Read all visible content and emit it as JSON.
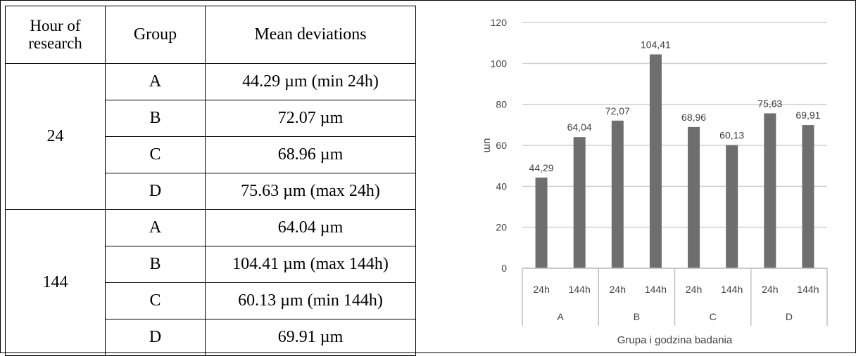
{
  "table": {
    "headers": [
      "Hour of research",
      "Group",
      "Mean deviations"
    ],
    "groups": [
      {
        "hour": "24",
        "rows": [
          {
            "group": "A",
            "mean": "44.29 µm (min 24h)"
          },
          {
            "group": "B",
            "mean": "72.07 µm"
          },
          {
            "group": "C",
            "mean": "68.96 µm"
          },
          {
            "group": "D",
            "mean": "75.63 µm (max 24h)"
          }
        ]
      },
      {
        "hour": "144",
        "rows": [
          {
            "group": "A",
            "mean": "64.04 µm"
          },
          {
            "group": "B",
            "mean": "104.41 µm (max 144h)"
          },
          {
            "group": "C",
            "mean": "60.13 µm (min 144h)"
          },
          {
            "group": "D",
            "mean": "69.91 µm"
          }
        ]
      }
    ]
  },
  "chart_data": {
    "type": "bar",
    "groups": [
      "A",
      "B",
      "C",
      "D"
    ],
    "subcategories": [
      "24h",
      "144h"
    ],
    "values": [
      44.29,
      64.04,
      72.07,
      104.41,
      68.96,
      60.13,
      75.63,
      69.91
    ],
    "data_labels": [
      "44,29",
      "64,04",
      "72,07",
      "104,41",
      "68,96",
      "60,13",
      "75,63",
      "69,91"
    ],
    "ylim": [
      0,
      120
    ],
    "yticks": [
      0,
      20,
      40,
      60,
      80,
      100,
      120
    ],
    "ylabel": "um",
    "xlabel": "Grupa i godzina badania",
    "grid": true,
    "bar_color": "#6e6e6e"
  }
}
